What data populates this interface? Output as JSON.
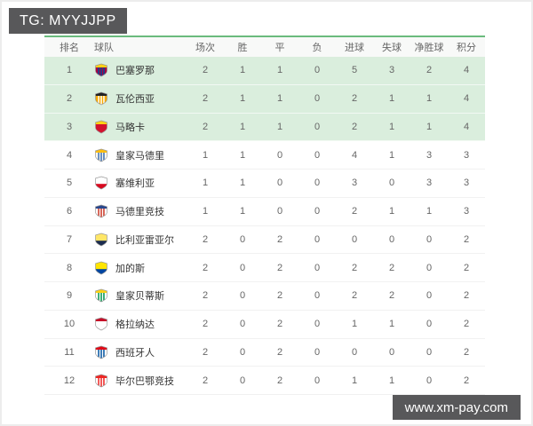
{
  "badges": {
    "tg_label": "TG: MYYJJPP",
    "site_label": "www.xm-pay.com",
    "bg_color": "#58585a"
  },
  "colors": {
    "highlight_row": "#daeedd",
    "table_top_border": "#6abb7d",
    "header_bg": "#f8f9f8",
    "text_gray": "#666666",
    "team_text": "#333333"
  },
  "table": {
    "headers": [
      "排名",
      "球队",
      "场次",
      "胜",
      "平",
      "负",
      "进球",
      "失球",
      "净胜球",
      "积分"
    ],
    "rows": [
      {
        "rank": "1",
        "team": "巴塞罗那",
        "highlight": true,
        "stats": [
          "2",
          "1",
          "1",
          "0",
          "5",
          "3",
          "2",
          "4"
        ],
        "logo": {
          "bg": "#a50044",
          "stripes": "#004d98",
          "band": "#fcd116",
          "band_pos": "top"
        }
      },
      {
        "rank": "2",
        "team": "瓦伦西亚",
        "highlight": true,
        "stats": [
          "2",
          "1",
          "1",
          "0",
          "2",
          "1",
          "1",
          "4"
        ],
        "logo": {
          "bg": "#f6a800",
          "stripes": "#ffffff",
          "band": "#222222",
          "band_pos": "top"
        }
      },
      {
        "rank": "3",
        "team": "马略卡",
        "highlight": true,
        "stats": [
          "2",
          "1",
          "1",
          "0",
          "2",
          "1",
          "1",
          "4"
        ],
        "logo": {
          "bg": "#d3122e",
          "stripes": "",
          "band": "#fcd116",
          "band_pos": "top"
        }
      },
      {
        "rank": "4",
        "team": "皇家马德里",
        "highlight": false,
        "stats": [
          "1",
          "1",
          "0",
          "0",
          "4",
          "1",
          "3",
          "3"
        ],
        "logo": {
          "bg": "#faf8ee",
          "stripes": "#3a6fb7",
          "band": "#febe10",
          "band_pos": "top"
        }
      },
      {
        "rank": "5",
        "team": "塞维利亚",
        "highlight": false,
        "stats": [
          "1",
          "1",
          "0",
          "0",
          "3",
          "0",
          "3",
          "3"
        ],
        "logo": {
          "bg": "#ffffff",
          "stripes": "",
          "band": "#d8091f",
          "band_pos": "bottom"
        }
      },
      {
        "rank": "6",
        "team": "马德里竞技",
        "highlight": false,
        "stats": [
          "1",
          "1",
          "0",
          "0",
          "2",
          "1",
          "1",
          "3"
        ],
        "logo": {
          "bg": "#ffffff",
          "stripes": "#cb3524",
          "band": "#29478d",
          "band_pos": "top"
        }
      },
      {
        "rank": "7",
        "team": "比利亚雷亚尔",
        "highlight": false,
        "stats": [
          "2",
          "0",
          "2",
          "0",
          "0",
          "0",
          "0",
          "2"
        ],
        "logo": {
          "bg": "#ffe667",
          "stripes": "",
          "band": "#1b2c4e",
          "band_pos": "bottom"
        }
      },
      {
        "rank": "8",
        "team": "加的斯",
        "highlight": false,
        "stats": [
          "2",
          "0",
          "2",
          "0",
          "2",
          "2",
          "0",
          "2"
        ],
        "logo": {
          "bg": "#ffe500",
          "stripes": "",
          "band": "#0045a1",
          "band_pos": "bottom"
        }
      },
      {
        "rank": "9",
        "team": "皇家贝蒂斯",
        "highlight": false,
        "stats": [
          "2",
          "0",
          "2",
          "0",
          "2",
          "2",
          "0",
          "2"
        ],
        "logo": {
          "bg": "#ffffff",
          "stripes": "#00954c",
          "band": "#fcd116",
          "band_pos": "top"
        }
      },
      {
        "rank": "10",
        "team": "格拉纳达",
        "highlight": false,
        "stats": [
          "2",
          "0",
          "2",
          "0",
          "1",
          "1",
          "0",
          "2"
        ],
        "logo": {
          "bg": "#ffffff",
          "stripes": "",
          "band": "#c60d28",
          "band_pos": "top"
        }
      },
      {
        "rank": "11",
        "team": "西班牙人",
        "highlight": false,
        "stats": [
          "2",
          "0",
          "2",
          "0",
          "0",
          "0",
          "0",
          "2"
        ],
        "logo": {
          "bg": "#ffffff",
          "stripes": "#00529f",
          "band": "#e10a17",
          "band_pos": "top"
        }
      },
      {
        "rank": "12",
        "team": "毕尔巴鄂竞技",
        "highlight": false,
        "stats": [
          "2",
          "0",
          "2",
          "0",
          "1",
          "1",
          "0",
          "2"
        ],
        "logo": {
          "bg": "#ffffff",
          "stripes": "#ee2523",
          "band": "#ee2523",
          "band_pos": "top"
        }
      }
    ]
  }
}
